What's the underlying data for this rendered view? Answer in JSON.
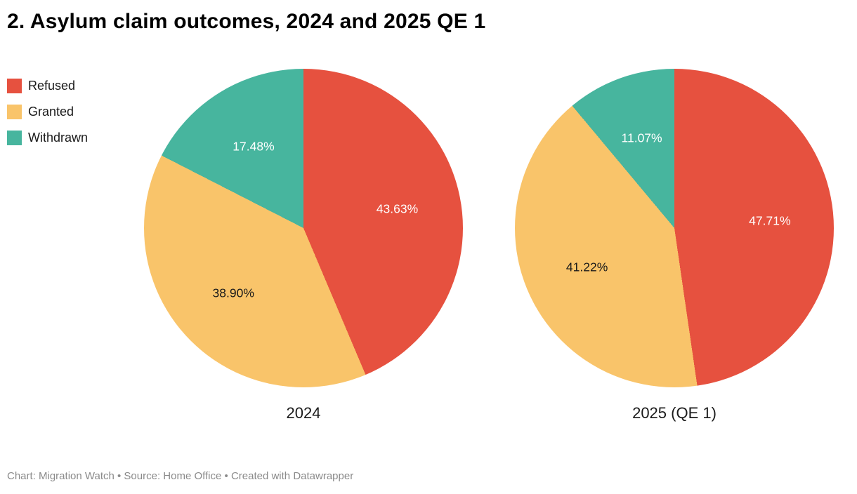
{
  "chart_data": {
    "type": "pie",
    "title": "2. Asylum claim outcomes, 2024 and 2025 QE 1",
    "legend": [
      {
        "label": "Refused",
        "color": "#e6513f"
      },
      {
        "label": "Granted",
        "color": "#f9c46a"
      },
      {
        "label": "Withdrawn",
        "color": "#47b59e"
      }
    ],
    "label_text_colors": [
      "#ffffff",
      "#1a1a1a",
      "#ffffff"
    ],
    "pies": [
      {
        "caption": "2024",
        "values": [
          43.63,
          38.9,
          17.48
        ],
        "labels": [
          "43.63%",
          "38.90%",
          "17.48%"
        ]
      },
      {
        "caption": "2025 (QE 1)",
        "values": [
          47.71,
          41.22,
          11.07
        ],
        "labels": [
          "47.71%",
          "41.22%",
          "11.07%"
        ]
      }
    ]
  },
  "footer": {
    "credit": "Chart: Migration Watch • Source: Home Office • Created with Datawrapper"
  }
}
